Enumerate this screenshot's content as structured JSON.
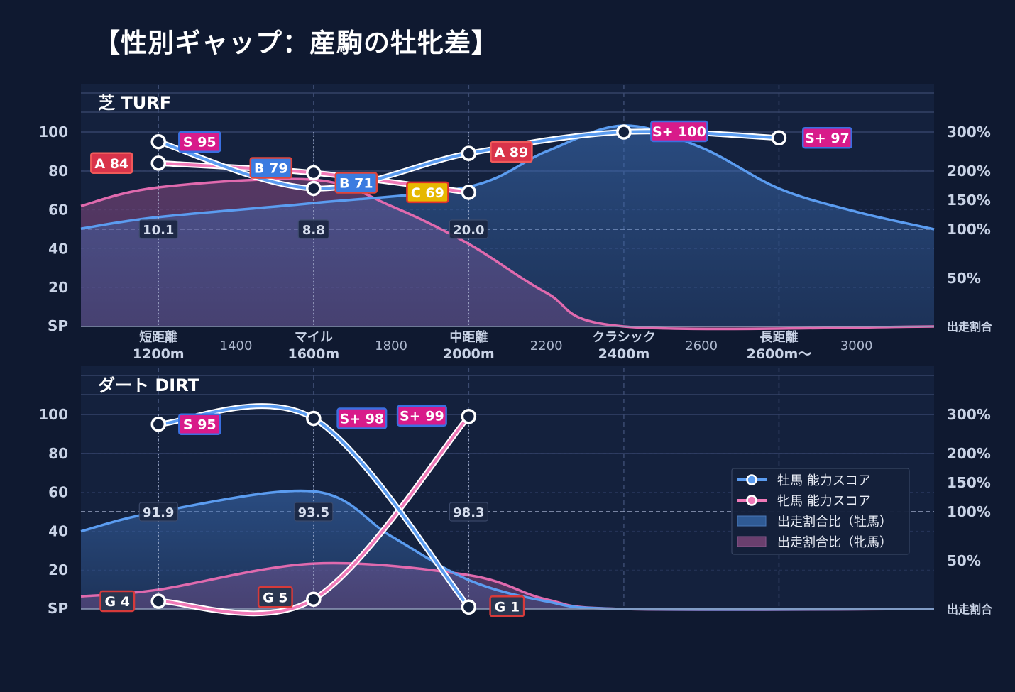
{
  "title": "【性別ギャップ：産駒の牡牝差】",
  "chart_data": {
    "type": "line",
    "x_axis": {
      "categories": [
        {
          "label": "短距離",
          "sub": "1200m",
          "x": 1200
        },
        {
          "label": "マイル",
          "sub": "1600m",
          "x": 1600
        },
        {
          "label": "中距離",
          "sub": "2000m",
          "x": 2000
        },
        {
          "label": "クラシック",
          "sub": "2400m",
          "x": 2400
        },
        {
          "label": "長距離",
          "sub": "2600m〜",
          "x": 2800
        }
      ],
      "minor_ticks": [
        {
          "label": "1400",
          "x": 1400
        },
        {
          "label": "1800",
          "x": 1800
        },
        {
          "label": "2200",
          "x": 2200
        },
        {
          "label": "2600",
          "x": 2600
        },
        {
          "label": "3000",
          "x": 3000
        }
      ],
      "range": [
        1000,
        3200
      ]
    },
    "y_left": {
      "ticks": [
        "SP",
        "20",
        "40",
        "60",
        "80",
        "100"
      ],
      "range": [
        0,
        100
      ]
    },
    "y_right": {
      "ticks": [
        "出走割合",
        "50%",
        "100%",
        "150%",
        "200%",
        "300%"
      ]
    },
    "legend": {
      "position": "right",
      "items": [
        {
          "label": "牡馬 能力スコア",
          "kind": "line",
          "color": "#5b9cf0"
        },
        {
          "label": "牝馬 能力スコア",
          "kind": "line",
          "color": "#f07ab8"
        },
        {
          "label": "出走割合比（牡馬）",
          "kind": "area",
          "color": "#2f5a94"
        },
        {
          "label": "出走割合比（牝馬）",
          "kind": "area",
          "color": "#6a3f6e"
        }
      ]
    },
    "panels": [
      {
        "name": "芝 TURF",
        "male": {
          "points": [
            {
              "x": 1200,
              "y": 95,
              "grade": "S",
              "score": "95"
            },
            {
              "x": 1600,
              "y": 71,
              "grade": "B",
              "score": "71"
            },
            {
              "x": 2000,
              "y": 89,
              "grade": "A",
              "score": "89"
            },
            {
              "x": 2400,
              "y": 100,
              "grade": "S+",
              "score": "100"
            },
            {
              "x": 2800,
              "y": 97,
              "grade": "S+",
              "score": "97"
            }
          ],
          "ratio_curve": [
            [
              1000,
              101
            ],
            [
              1200,
              121
            ],
            [
              1600,
              145
            ],
            [
              2000,
              173
            ],
            [
              2200,
              250
            ],
            [
              2400,
              320
            ],
            [
              2600,
              260
            ],
            [
              2800,
              170
            ],
            [
              3000,
              130
            ],
            [
              3200,
              100
            ]
          ]
        },
        "female": {
          "points": [
            {
              "x": 1200,
              "y": 84,
              "grade": "A",
              "score": "84"
            },
            {
              "x": 1600,
              "y": 79,
              "grade": "B",
              "score": "79"
            },
            {
              "x": 2000,
              "y": 69,
              "grade": "C",
              "score": "69"
            }
          ],
          "ratio_curve": [
            [
              1000,
              140
            ],
            [
              1200,
              172
            ],
            [
              1600,
              185
            ],
            [
              1800,
              140
            ],
            [
              2000,
              85
            ],
            [
              2200,
              35
            ],
            [
              2400,
              0
            ],
            [
              3200,
              0
            ]
          ]
        },
        "ratio_labels": [
          {
            "x": 1200,
            "text": "10.1"
          },
          {
            "x": 1600,
            "text": "8.8"
          },
          {
            "x": 2000,
            "text": "20.0"
          }
        ]
      },
      {
        "name": "ダート DIRT",
        "male": {
          "points": [
            {
              "x": 1200,
              "y": 95,
              "grade": "S",
              "score": "95"
            },
            {
              "x": 1600,
              "y": 98,
              "grade": "S+",
              "score": "98"
            },
            {
              "x": 2000,
              "y": 1,
              "grade": "G",
              "score": "1"
            }
          ],
          "ratio_curve": [
            [
              1000,
              80
            ],
            [
              1200,
              100
            ],
            [
              1600,
              135
            ],
            [
              1800,
              75
            ],
            [
              2000,
              30
            ],
            [
              2200,
              8
            ],
            [
              2400,
              0
            ],
            [
              3200,
              0
            ]
          ]
        },
        "female": {
          "points": [
            {
              "x": 1200,
              "y": 4,
              "grade": "G",
              "score": "4"
            },
            {
              "x": 1600,
              "y": 5,
              "grade": "G",
              "score": "5"
            },
            {
              "x": 2000,
              "y": 99,
              "grade": "S+",
              "score": "99"
            }
          ],
          "ratio_curve": [
            [
              1000,
              13
            ],
            [
              1200,
              20
            ],
            [
              1600,
              47
            ],
            [
              2000,
              35
            ],
            [
              2200,
              10
            ],
            [
              2400,
              0
            ],
            [
              3200,
              0
            ]
          ]
        },
        "ratio_labels": [
          {
            "x": 1200,
            "text": "91.9"
          },
          {
            "x": 1600,
            "text": "93.5"
          },
          {
            "x": 2000,
            "text": "98.3"
          }
        ]
      }
    ],
    "grade_colors": {
      "S+": {
        "fill": "#d81b8a",
        "stroke": "#3a6fe0"
      },
      "S": {
        "fill": "#d81b8a",
        "stroke": "#3a6fe0"
      },
      "A": {
        "fill": "#d9334a",
        "stroke": "#f05a5a"
      },
      "B": {
        "fill": "#3b7be0",
        "stroke": "#e0453b"
      },
      "C": {
        "fill": "#e6b800",
        "stroke": "#e0302e"
      },
      "G": {
        "fill": "#2a3650",
        "stroke": "#d63a3a"
      }
    }
  }
}
